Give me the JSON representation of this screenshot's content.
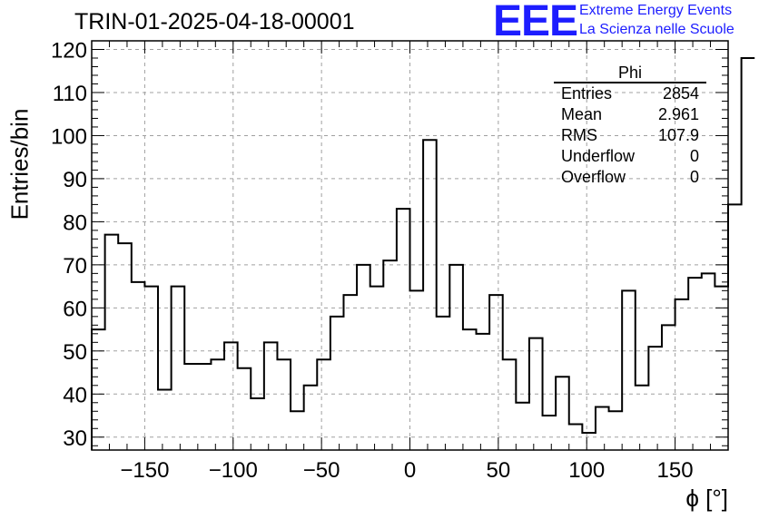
{
  "chart_data": {
    "type": "histogram",
    "title": "TRIN-01-2025-04-18-00001",
    "xlabel": "ϕ [°]",
    "ylabel": "Entries/bin",
    "xlim": [
      -180,
      180
    ],
    "ylim": [
      27,
      122
    ],
    "bin_width": 7.5,
    "x_ticks": [
      -150,
      -100,
      -50,
      0,
      50,
      100,
      150
    ],
    "x_tick_labels": [
      "−150",
      "−100",
      "−50",
      "0",
      "50",
      "100",
      "150"
    ],
    "y_ticks": [
      30,
      40,
      50,
      60,
      70,
      80,
      90,
      100,
      110,
      120
    ],
    "y_tick_labels": [
      "30",
      "40",
      "50",
      "60",
      "70",
      "80",
      "90",
      "100",
      "110",
      "120"
    ],
    "grid": true,
    "bin_values": [
      55,
      77,
      75,
      66,
      65,
      41,
      65,
      47,
      47,
      48,
      52,
      46,
      39,
      52,
      48,
      36,
      42,
      48,
      58,
      63,
      70,
      65,
      71,
      83,
      64,
      99,
      58,
      70,
      55,
      54,
      63,
      48,
      38,
      53,
      35,
      44,
      33,
      31,
      37,
      36,
      64,
      42,
      51,
      56,
      62,
      67,
      68,
      65,
      84,
      118
    ]
  },
  "stats_box": {
    "title": "Phi",
    "rows": [
      {
        "label": "Entries",
        "value": "2854"
      },
      {
        "label": "Mean",
        "value": "2.961"
      },
      {
        "label": "RMS",
        "value": "107.9"
      },
      {
        "label": "Underflow",
        "value": "0"
      },
      {
        "label": "Overflow",
        "value": "0"
      }
    ]
  },
  "logo": {
    "mark": "EEE",
    "line1": "Extreme Energy Events",
    "line2": "La Scienza nelle Scuole",
    "color": "#1d1dff"
  }
}
